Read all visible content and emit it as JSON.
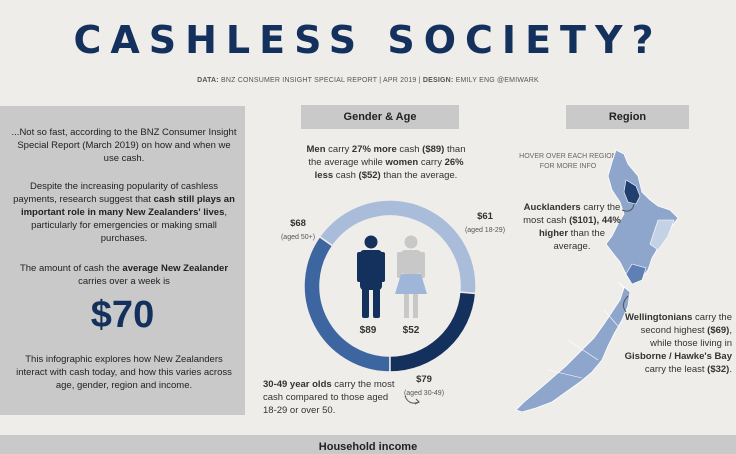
{
  "title": "CASHLESS SOCIETY?",
  "credit": {
    "data_label": "DATA:",
    "data_text": "BNZ CONSUMER INSIGHT SPECIAL REPORT | APR 2019 |",
    "design_label": "DESIGN:",
    "design_text": "EMILY ENG @EMIWARK"
  },
  "left": {
    "p1": "...Not so fast, according to the BNZ Consumer Insight Special Report (March 2019) on how and when we use cash.",
    "p2_a": "Despite the increasing popularity of cashless payments, research suggest that ",
    "p2_b": "cash still plays an important role in many New Zealanders' lives",
    "p2_c": ", particularly for emergencies or making small purchases.",
    "p3_a": "The amount of cash the ",
    "p3_b": "average New Zealander",
    "p3_c": " carries over a week is",
    "amount": "$70",
    "p4": "This infographic explores how New Zealanders interact with cash today, and how this varies across age, gender, region and income."
  },
  "gender_age": {
    "header": "Gender & Age",
    "intro_men": "Men",
    "intro_a": " carry ",
    "intro_pct": "27% more",
    "intro_b": " cash ",
    "intro_amt": "($89)",
    "intro_c": " than the average while ",
    "intro_women": "women",
    "intro_d": " carry ",
    "intro_pct2": "26% less",
    "intro_e": " cash ",
    "intro_amt2": "($52)",
    "intro_f": " than the average.",
    "men_value": "$89",
    "women_value": "$52",
    "segments": [
      {
        "value": "$68",
        "label": "(aged 50+)",
        "color": "#3d66a0"
      },
      {
        "value": "$61",
        "label": "(aged 18-29)",
        "color": "#a9bcd9"
      },
      {
        "value": "$79",
        "label": "(aged 30-49)",
        "color": "#14305c"
      }
    ],
    "age_note_a": "30-49 year olds",
    "age_note_b": " carry the most cash compared to those aged 18-29 or over 50."
  },
  "region": {
    "header": "Region",
    "hover": "HOVER OVER EACH REGION FOR MORE INFO",
    "akl_a": "Aucklanders",
    "akl_b": " carry the most cash ",
    "akl_c": "($101), 44% higher",
    "akl_d": " than the average.",
    "wlg_a": "Wellingtonians",
    "wlg_b": " carry the second highest ",
    "wlg_c": "($69)",
    "wlg_d": ", while those living in ",
    "wlg_e": "Gisborne / Hawke's Bay",
    "wlg_f": " carry the least ",
    "wlg_g": "($32)",
    "wlg_h": "."
  },
  "bottom": {
    "header": "Household income"
  },
  "colors": {
    "navy": "#14305c",
    "mid_blue": "#3d66a0",
    "light_blue": "#a9bcd9",
    "map_fill": "#8ea6cc",
    "map_dark": "#21406f",
    "female_fill": "#c8c8c8",
    "female_skirt": "#9fb6d8"
  }
}
